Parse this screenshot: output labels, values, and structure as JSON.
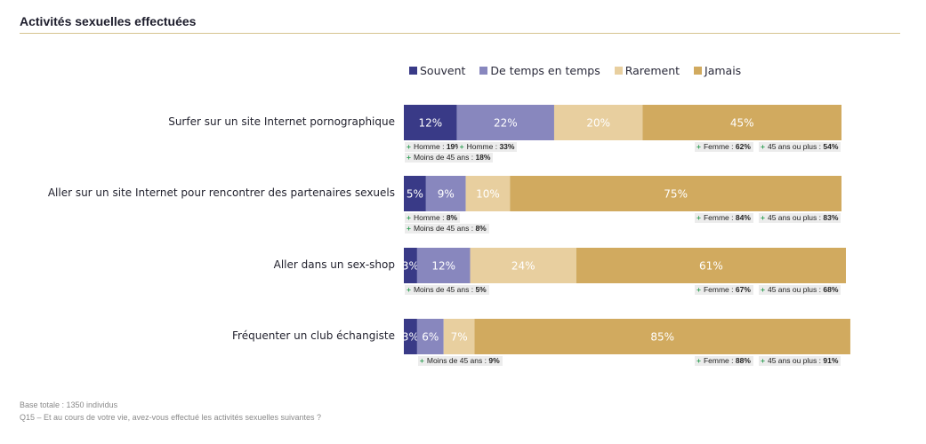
{
  "title": "Activités sexuelles effectuées",
  "legend": {
    "items": [
      {
        "label": "Souvent",
        "color": "#393a87"
      },
      {
        "label": "De temps en temps",
        "color": "#8887be"
      },
      {
        "label": "Rarement",
        "color": "#e8cf9f"
      },
      {
        "label": "Jamais",
        "color": "#d1aa5f"
      }
    ]
  },
  "chart_data": {
    "type": "bar",
    "orientation": "horizontal",
    "stacked": true,
    "value_unit": "%",
    "categories": [
      "Surfer sur un site Internet pornographique",
      "Aller sur un site Internet pour rencontrer des partenaires sexuels",
      "Aller dans un sex-shop",
      "Fréquenter un club échangiste"
    ],
    "series": [
      {
        "name": "Souvent",
        "color": "#393a87",
        "label_color": "#ffffff",
        "values": [
          12,
          5,
          3,
          3
        ]
      },
      {
        "name": "De temps en temps",
        "color": "#8887be",
        "label_color": "#ffffff",
        "values": [
          22,
          9,
          12,
          6
        ]
      },
      {
        "name": "Rarement",
        "color": "#e8cf9f",
        "label_color": "#ffffff",
        "values": [
          20,
          10,
          24,
          7
        ]
      },
      {
        "name": "Jamais",
        "color": "#d1aa5f",
        "label_color": "#ffffff",
        "values": [
          45,
          75,
          61,
          85
        ]
      }
    ],
    "xlim": [
      0,
      99
    ],
    "grid": false,
    "legend_position": "top",
    "annotations": [
      {
        "row": 0,
        "line": 0,
        "series": "Souvent",
        "label": "Homme :",
        "value": "19%"
      },
      {
        "row": 0,
        "line": 0,
        "series": "De temps en temps",
        "label": "Homme :",
        "value": "33%"
      },
      {
        "row": 0,
        "line": 0,
        "series": "Jamais",
        "label": "Femme :",
        "value": "62%"
      },
      {
        "row": 0,
        "line": 0,
        "series": "Jamais",
        "label": "45 ans ou plus :",
        "value": "54%"
      },
      {
        "row": 0,
        "line": 1,
        "series": "Souvent",
        "label": "Moins de 45 ans :",
        "value": "18%"
      },
      {
        "row": 1,
        "line": 0,
        "series": "Souvent",
        "label": "Homme :",
        "value": "8%"
      },
      {
        "row": 1,
        "line": 0,
        "series": "Jamais",
        "label": "Femme :",
        "value": "84%"
      },
      {
        "row": 1,
        "line": 0,
        "series": "Jamais",
        "label": "45 ans ou plus :",
        "value": "83%"
      },
      {
        "row": 1,
        "line": 1,
        "series": "Souvent",
        "label": "Moins de 45 ans :",
        "value": "8%"
      },
      {
        "row": 2,
        "line": 0,
        "series": "Souvent",
        "label": "Moins de 45 ans :",
        "value": "5%"
      },
      {
        "row": 2,
        "line": 0,
        "series": "Jamais",
        "label": "Femme :",
        "value": "67%"
      },
      {
        "row": 2,
        "line": 0,
        "series": "Jamais",
        "label": "45 ans ou plus :",
        "value": "68%"
      },
      {
        "row": 3,
        "line": 0,
        "series": "De temps en temps",
        "label": "Moins de 45 ans :",
        "value": "9%"
      },
      {
        "row": 3,
        "line": 0,
        "series": "Jamais",
        "label": "Femme :",
        "value": "88%"
      },
      {
        "row": 3,
        "line": 0,
        "series": "Jamais",
        "label": "45 ans ou plus :",
        "value": "91%"
      }
    ]
  },
  "footer": {
    "base": "Base totale : 1350 individus",
    "question": "Q15 – Et au cours de votre vie, avez-vous effectué les activités sexuelles suivantes ?"
  }
}
